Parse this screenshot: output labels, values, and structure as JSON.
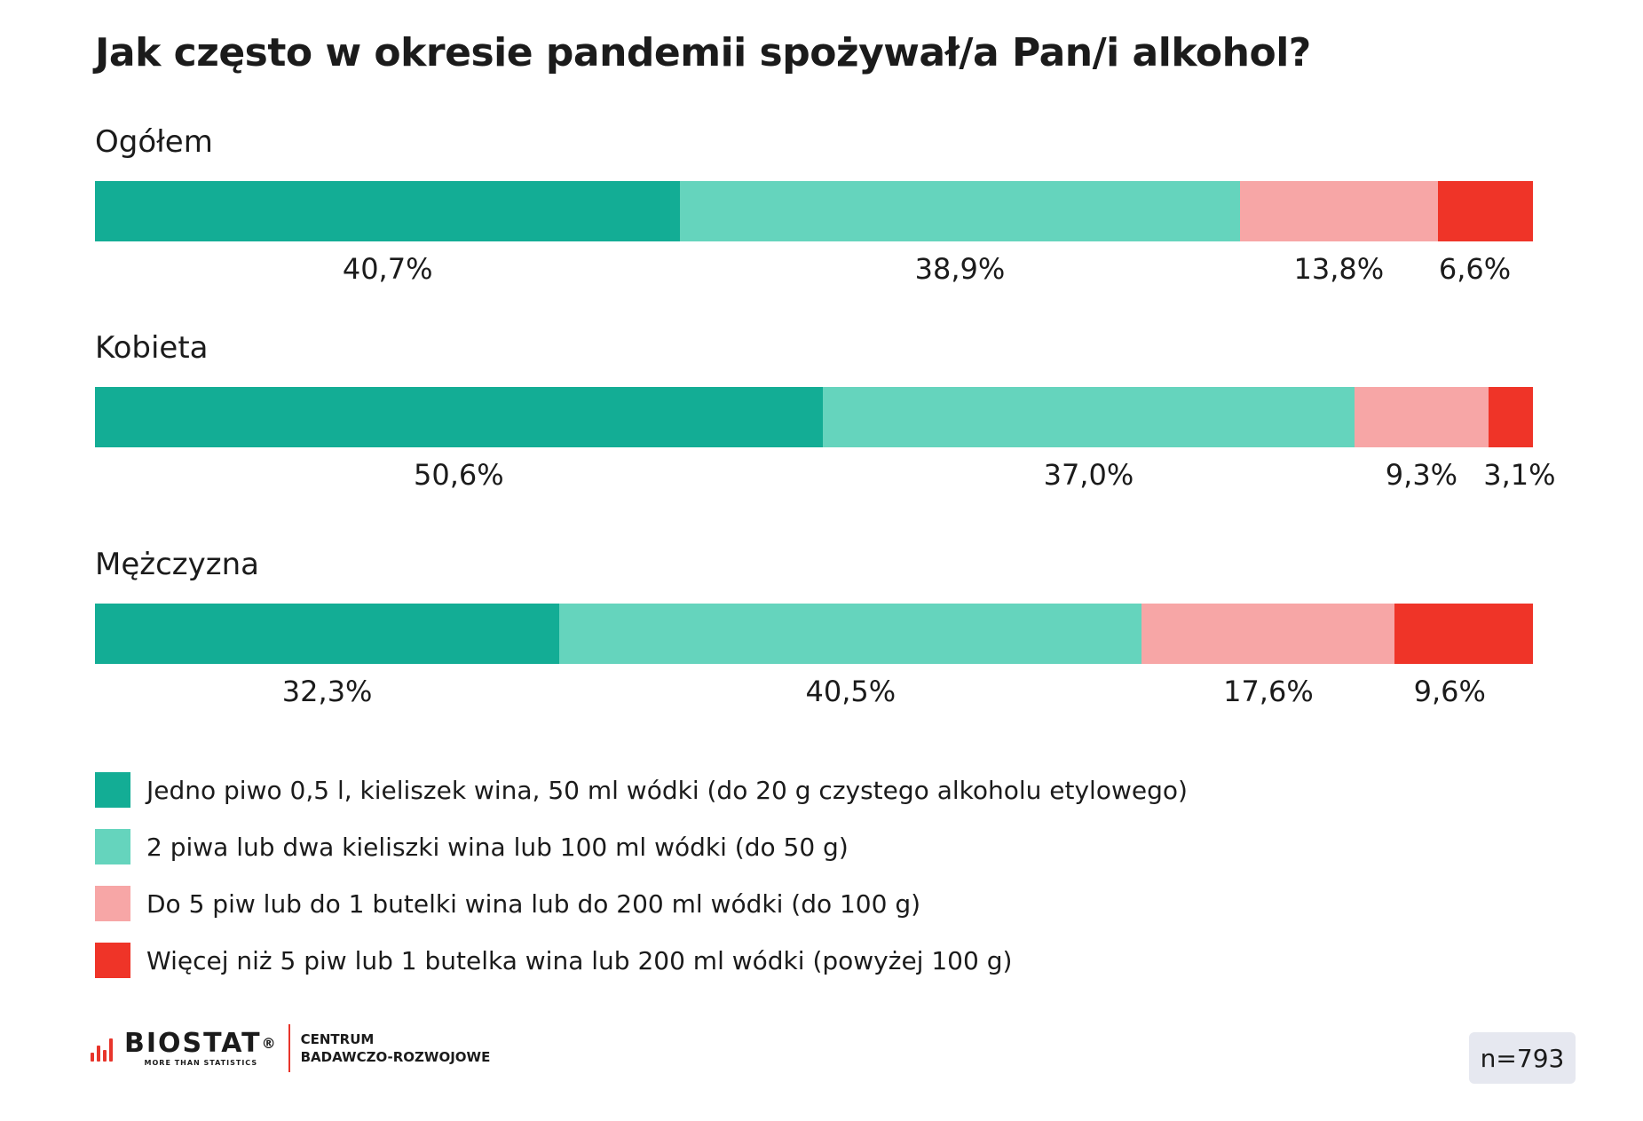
{
  "chart_data": {
    "type": "bar",
    "orientation": "horizontal-stacked-100",
    "title": "Jak często w okresie pandemii spożywał/a Pan/i alkohol?",
    "categories": [
      "Ogółem",
      "Kobieta",
      "Mężczyzna"
    ],
    "series": [
      {
        "name": "Jedno piwo 0,5 l, kieliszek wina, 50 ml wódki (do 20 g czystego alkoholu etylowego)",
        "color": "#13ad95",
        "values": [
          40.7,
          50.6,
          32.3
        ],
        "labels": [
          "40,7%",
          "50,6%",
          "32,3%"
        ]
      },
      {
        "name": "2 piwa lub dwa kieliszki wina lub 100 ml wódki (do 50 g)",
        "color": "#65d4bd",
        "values": [
          38.9,
          37.0,
          40.5
        ],
        "labels": [
          "38,9%",
          "37,0%",
          "40,5%"
        ]
      },
      {
        "name": "Do 5 piw lub do 1 butelki wina lub do 200 ml wódki (do 100 g)",
        "color": "#f7a6a6",
        "values": [
          13.8,
          9.3,
          17.6
        ],
        "labels": [
          "13,8%",
          "9,3%",
          "17,6%"
        ]
      },
      {
        "name": "Więcej niż 5 piw lub 1 butelka wina lub 200 ml wódki (powyżej 100 g)",
        "color": "#ef3428",
        "values": [
          6.6,
          3.1,
          9.6
        ],
        "labels": [
          "6,6%",
          "3,1%",
          "9,6%"
        ]
      }
    ],
    "legend_position": "bottom-left",
    "grid": false
  },
  "footer": {
    "brand": "BIOSTAT",
    "registered": "®",
    "tagline": "MORE THAN STATISTICS",
    "centrum_line1": "CENTRUM",
    "centrum_line2": "BADAWCZO-ROZWOJOWE",
    "sample_size": "n=793"
  }
}
